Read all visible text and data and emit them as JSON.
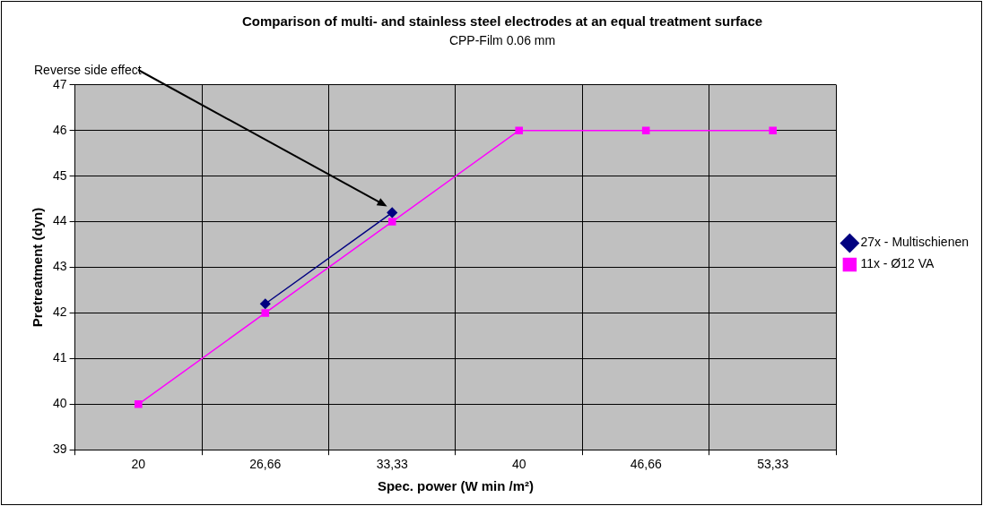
{
  "chart_data": {
    "type": "line",
    "title": "Comparison of multi- and stainless steel electrodes at an equal treatment surface",
    "subtitle": "CPP-Film 0.06 mm",
    "xlabel": "Spec. power (W min /m²)",
    "ylabel": "Pretreatment (dyn)",
    "categories": [
      "20",
      "26,66",
      "33,33",
      "40",
      "46,66",
      "53,33"
    ],
    "series": [
      {
        "name": "27x - Multischienen",
        "color": "#000080",
        "marker": "diamond",
        "values": [
          null,
          42.2,
          44.2,
          null,
          null,
          null
        ]
      },
      {
        "name": "11x - Ø12 VA",
        "color": "#ff00ff",
        "marker": "square",
        "values": [
          40,
          42,
          44,
          46,
          46,
          46
        ]
      }
    ],
    "ylim": [
      39,
      47
    ],
    "yticks": [
      39,
      40,
      41,
      42,
      43,
      44,
      45,
      46,
      47
    ],
    "grid": true,
    "legend": "right",
    "line_style": "solid",
    "annotations": [
      "Reverse side effect"
    ]
  }
}
